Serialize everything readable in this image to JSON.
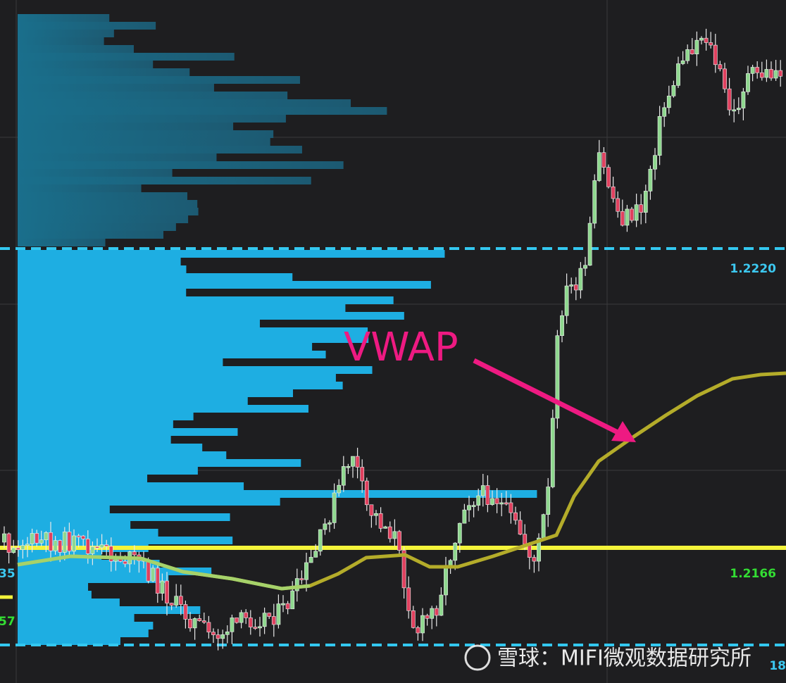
{
  "price_labels": [
    "1.2220",
    "1.2166"
  ],
  "edge_labels": [
    "35",
    "57",
    "18"
  ],
  "annotation": "VWAP",
  "watermark": "雪球：MIFI微观数据研究所"
}
